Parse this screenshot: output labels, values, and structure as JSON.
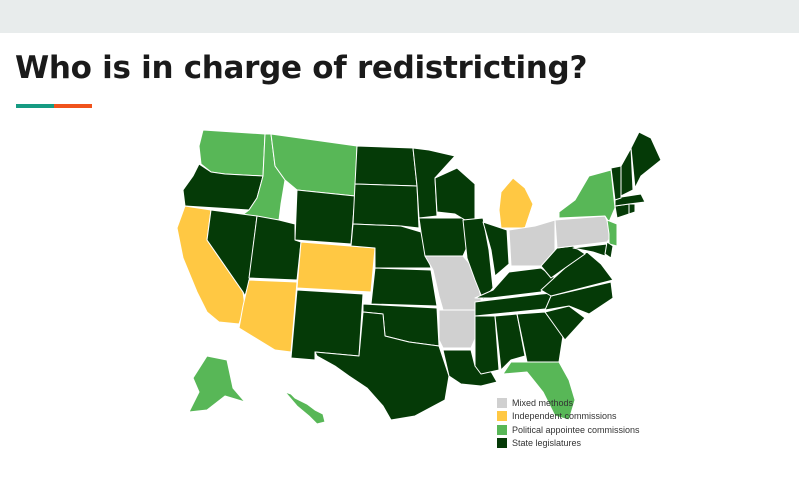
{
  "title": "Who is in charge of redistricting?",
  "colors": {
    "accent_teal": "#169b82",
    "accent_orange": "#f0531c",
    "mixed": "#d0d0d0",
    "independent": "#ffc843",
    "political": "#58b757",
    "legislature": "#053a07",
    "border": "#ffffff"
  },
  "legend": [
    {
      "key": "mixed",
      "label": "Mixed methods"
    },
    {
      "key": "independent",
      "label": "Independent commissions"
    },
    {
      "key": "political",
      "label": "Political appointee commissions"
    },
    {
      "key": "legislature",
      "label": "State legislatures"
    }
  ],
  "states": [
    {
      "id": "WA",
      "category": "political"
    },
    {
      "id": "OR",
      "category": "legislature"
    },
    {
      "id": "CA",
      "category": "independent"
    },
    {
      "id": "ID",
      "category": "political"
    },
    {
      "id": "NV",
      "category": "legislature"
    },
    {
      "id": "MT",
      "category": "political"
    },
    {
      "id": "WY",
      "category": "legislature"
    },
    {
      "id": "UT",
      "category": "legislature"
    },
    {
      "id": "AZ",
      "category": "independent"
    },
    {
      "id": "CO",
      "category": "independent"
    },
    {
      "id": "NM",
      "category": "legislature"
    },
    {
      "id": "ND",
      "category": "legislature"
    },
    {
      "id": "SD",
      "category": "legislature"
    },
    {
      "id": "NE",
      "category": "legislature"
    },
    {
      "id": "KS",
      "category": "legislature"
    },
    {
      "id": "OK",
      "category": "legislature"
    },
    {
      "id": "TX",
      "category": "legislature"
    },
    {
      "id": "MN",
      "category": "legislature"
    },
    {
      "id": "IA",
      "category": "legislature"
    },
    {
      "id": "MO",
      "category": "mixed"
    },
    {
      "id": "AR",
      "category": "mixed"
    },
    {
      "id": "LA",
      "category": "legislature"
    },
    {
      "id": "WI",
      "category": "legislature"
    },
    {
      "id": "IL",
      "category": "legislature"
    },
    {
      "id": "MI",
      "category": "independent"
    },
    {
      "id": "IN",
      "category": "legislature"
    },
    {
      "id": "OH",
      "category": "mixed"
    },
    {
      "id": "KY",
      "category": "legislature"
    },
    {
      "id": "TN",
      "category": "legislature"
    },
    {
      "id": "MS",
      "category": "legislature"
    },
    {
      "id": "AL",
      "category": "legislature"
    },
    {
      "id": "GA",
      "category": "legislature"
    },
    {
      "id": "FL",
      "category": "political"
    },
    {
      "id": "SC",
      "category": "legislature"
    },
    {
      "id": "NC",
      "category": "legislature"
    },
    {
      "id": "VA",
      "category": "legislature"
    },
    {
      "id": "WV",
      "category": "legislature"
    },
    {
      "id": "PA",
      "category": "mixed"
    },
    {
      "id": "NY",
      "category": "political"
    },
    {
      "id": "NJ",
      "category": "political"
    },
    {
      "id": "MD",
      "category": "legislature"
    },
    {
      "id": "DE",
      "category": "legislature"
    },
    {
      "id": "CT",
      "category": "legislature"
    },
    {
      "id": "RI",
      "category": "legislature"
    },
    {
      "id": "MA",
      "category": "legislature"
    },
    {
      "id": "VT",
      "category": "legislature"
    },
    {
      "id": "NH",
      "category": "legislature"
    },
    {
      "id": "ME",
      "category": "legislature"
    },
    {
      "id": "AK",
      "category": "political"
    },
    {
      "id": "HI",
      "category": "political"
    }
  ]
}
